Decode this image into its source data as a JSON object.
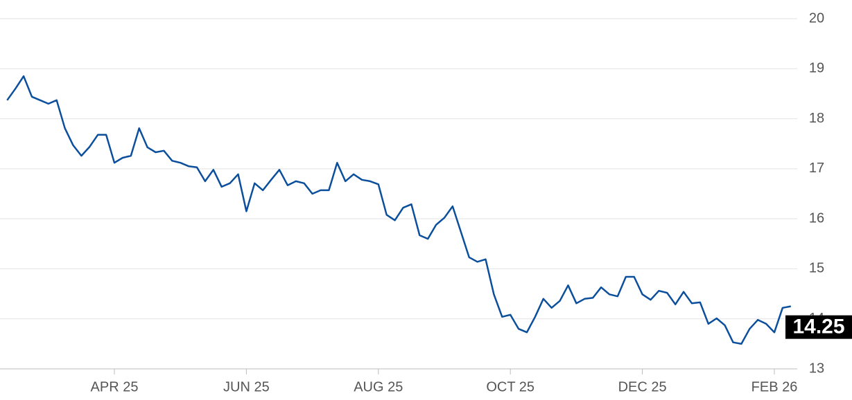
{
  "chart_data": {
    "type": "line",
    "categories": [
      null,
      null,
      null,
      null,
      null,
      null,
      null,
      null,
      null,
      null,
      null,
      null,
      null,
      "APR 25",
      null,
      null,
      null,
      null,
      null,
      null,
      null,
      null,
      null,
      null,
      null,
      null,
      null,
      null,
      null,
      "JUN 25",
      null,
      null,
      null,
      null,
      null,
      null,
      null,
      null,
      null,
      null,
      null,
      null,
      null,
      null,
      null,
      "AUG 25",
      null,
      null,
      null,
      null,
      null,
      null,
      null,
      null,
      null,
      null,
      null,
      null,
      null,
      null,
      null,
      "OCT 25",
      null,
      null,
      null,
      null,
      null,
      null,
      null,
      null,
      null,
      null,
      null,
      null,
      null,
      null,
      null,
      "DEC 25",
      null,
      null,
      null,
      null,
      null,
      null,
      null,
      null,
      null,
      null,
      null,
      null,
      null,
      null,
      null,
      "FEB 26",
      null,
      null
    ],
    "series": [
      {
        "color": "#0b4f9c",
        "values": [
          18.37,
          18.6,
          18.85,
          18.44,
          18.37,
          18.3,
          18.37,
          17.81,
          17.47,
          17.26,
          17.44,
          17.68,
          17.68,
          17.12,
          17.22,
          17.26,
          17.81,
          17.43,
          17.33,
          17.36,
          17.16,
          17.12,
          17.05,
          17.03,
          16.75,
          16.98,
          16.64,
          16.71,
          16.89,
          16.15,
          16.71,
          16.57,
          16.78,
          16.98,
          16.67,
          16.75,
          16.71,
          16.5,
          16.57,
          16.57,
          17.12,
          16.75,
          16.89,
          16.78,
          16.75,
          16.69,
          16.08,
          15.97,
          16.22,
          16.29,
          15.67,
          15.6,
          15.88,
          16.02,
          16.25,
          15.74,
          15.23,
          15.14,
          15.19,
          14.49,
          14.04,
          14.08,
          13.8,
          13.73,
          14.04,
          14.4,
          14.22,
          14.36,
          14.67,
          14.31,
          14.4,
          14.42,
          14.63,
          14.49,
          14.45,
          14.84,
          14.84,
          14.49,
          14.38,
          14.56,
          14.52,
          14.29,
          14.54,
          14.31,
          14.33,
          13.9,
          14.01,
          13.87,
          13.53,
          13.5,
          13.8,
          13.98,
          13.9,
          13.73,
          14.22,
          14.25
        ]
      }
    ],
    "ylim": [
      13,
      20
    ],
    "yticks": [
      13,
      14,
      15,
      16,
      17,
      18,
      19,
      20
    ],
    "grid": true
  }
}
